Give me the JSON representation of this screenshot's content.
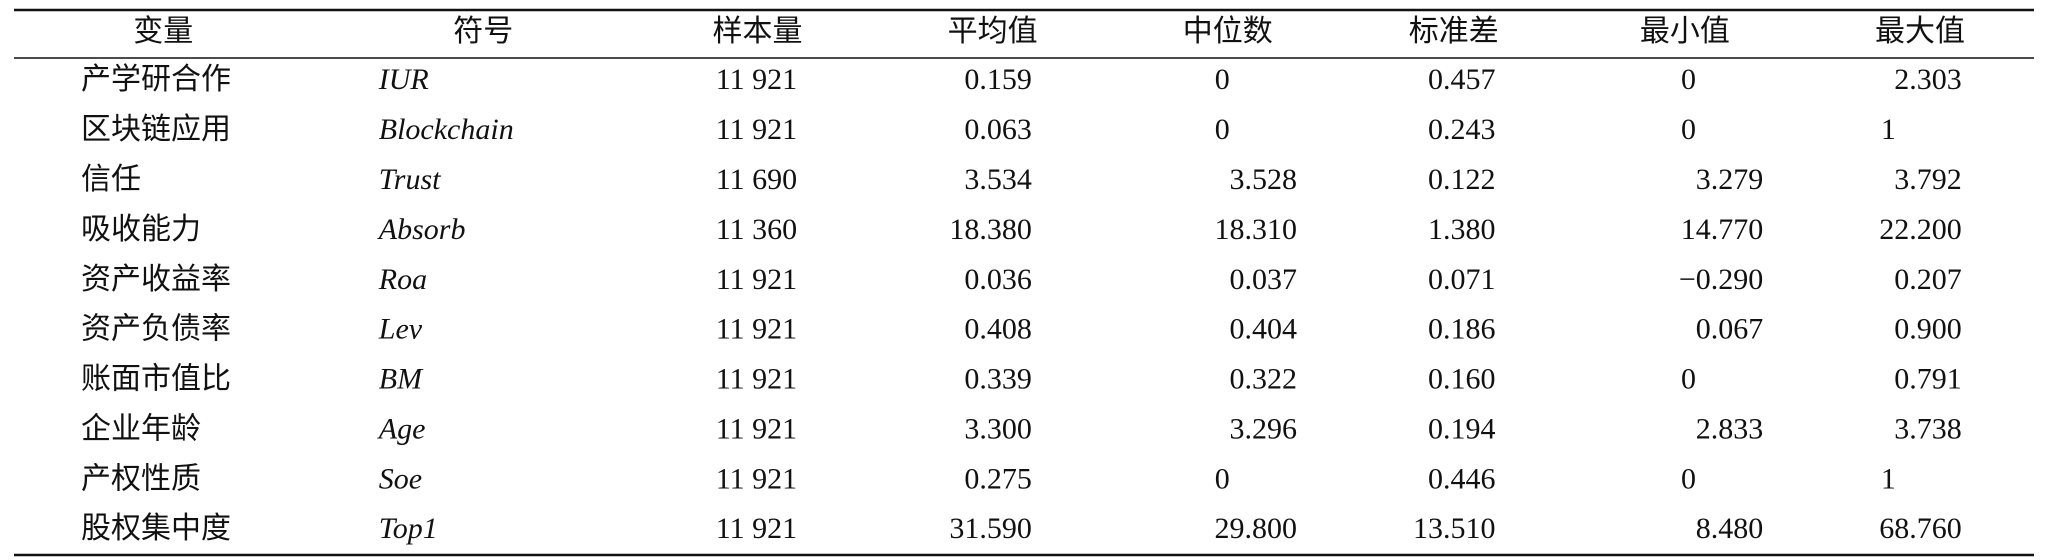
{
  "table": {
    "header": [
      "变量",
      "符号",
      "样本量",
      "平均值",
      "中位数",
      "标准差",
      "最小值",
      "最大值"
    ],
    "rows": [
      [
        "产学研合作",
        "IUR",
        "11 921",
        "0.159",
        "0",
        "0.457",
        "0",
        "2.303"
      ],
      [
        "区块链应用",
        "Blockchain",
        "11 921",
        "0.063",
        "0",
        "0.243",
        "0",
        "1"
      ],
      [
        "信任",
        "Trust",
        "11 690",
        "3.534",
        "3.528",
        "0.122",
        "3.279",
        "3.792"
      ],
      [
        "吸收能力",
        "Absorb",
        "11 360",
        "18.380",
        "18.310",
        "1.380",
        "14.770",
        "22.200"
      ],
      [
        "资产收益率",
        "Roa",
        "11 921",
        "0.036",
        "0.037",
        "0.071",
        "−0.290",
        "0.207"
      ],
      [
        "资产负债率",
        "Lev",
        "11 921",
        "0.408",
        "0.404",
        "0.186",
        "0.067",
        "0.900"
      ],
      [
        "账面市值比",
        "BM",
        "11 921",
        "0.339",
        "0.322",
        "0.160",
        "0",
        "0.791"
      ],
      [
        "企业年龄",
        "Age",
        "11 921",
        "3.300",
        "3.296",
        "0.194",
        "2.833",
        "3.738"
      ],
      [
        "产权性质",
        "Soe",
        "11 921",
        "0.275",
        "0",
        "0.446",
        "0",
        "1"
      ],
      [
        "股权集中度",
        "Top1",
        "11 921",
        "31.590",
        "29.800",
        "13.510",
        "8.480",
        "68.760"
      ]
    ]
  }
}
